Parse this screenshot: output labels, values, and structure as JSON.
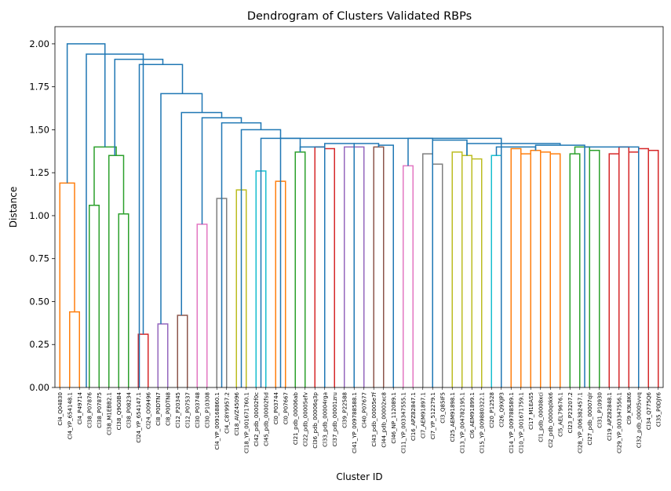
{
  "chart_data": {
    "type": "dendrogram",
    "title": "Dendrogram of Clusters Validated RBPs",
    "xlabel": "Cluster ID",
    "ylabel": "Distance",
    "ylim": [
      0,
      2.1
    ],
    "yticks": [
      0.0,
      0.25,
      0.5,
      0.75,
      1.0,
      1.25,
      1.5,
      1.75,
      2.0
    ],
    "ytick_labels": [
      "0.00",
      "0.25",
      "0.50",
      "0.75",
      "1.00",
      "1.25",
      "1.50",
      "1.75",
      "2.00"
    ],
    "grid": false,
    "above_threshold_color": "#1f77b4",
    "leaves": [
      "Cl4_Q04830",
      "Cl4_YP_654148.1",
      "Cl4_P49714",
      "Cl38_P07876",
      "Cl38_P07875",
      "Cl38_M1EBB2.1",
      "Cl38_Q9G0B4",
      "Cl38_P08234",
      "Cl24_YP_654147.1",
      "Cl24_O09496",
      "Cl8_P0DTN7",
      "Cl8_P0DTN8",
      "Cl12_P20345",
      "Cl12_P07537",
      "Cl30_P03748",
      "Cl30_P10308",
      "Cl4_YP_009168860.1",
      "Cl4_C8Y9957.2",
      "Cl18_AVZ45096",
      "Cl18_YP_001671760.1",
      "Cl42_pdb_00002f0c",
      "Cl45_pdb_00002fsd",
      "Cl0_P03744",
      "Cl0_P07667",
      "Cl21_pdb_00006ab",
      "Cl22_pdb_00005efv",
      "Cl36_pdb_00006q3p",
      "Cl33_pdb_00004rga",
      "Cl37_pdb_00001zru",
      "Cl39_P22588",
      "Cl41_YP_009788588.1",
      "Cl40_P07677",
      "Cl43_pdb_00005e7f",
      "Cl44_pdb_00002xc8",
      "Cl46_NP_112089.1",
      "Cl11_YP_003347555.1",
      "Cl16_APZ82847.1",
      "Cl7_AEM91897.1",
      "Cl7_YP_512279.1",
      "Cl3_Q85IF5",
      "Cl25_AEM91898.1",
      "Cl13_YP_004782195.1",
      "Cl6_AEM91899.1",
      "Cl15_YP_009880322.1",
      "Cl20_P12528",
      "Cl26_Q9XJP3",
      "Cl14_YP_009788589.1",
      "Cl10_YP_001671759.1",
      "Cl17_M1EAS5",
      "Cl1_pdb_00008xci",
      "Cl2_pdb_0000q0kk6",
      "Cl5_AEL79676.1",
      "Cl23_P23207.2",
      "Cl28_YP_006382457.1",
      "Cl27_pdb_00007qlr",
      "Cl31_P10930",
      "Cl19_APZ82848.1",
      "Cl29_YP_003347556.1",
      "Cl9_K9L8K6",
      "Cl32_pdb_00005vvq",
      "Cl34_Q775Q6",
      "Cl35_P0DJY6"
    ],
    "links": [
      {
        "leaves": [
          1,
          2
        ],
        "height": 0.44,
        "color": "#ff7f0e"
      },
      {
        "leaves": [
          0,
          1.5
        ],
        "height": 1.19,
        "color": "#ff7f0e"
      },
      {
        "leaves": [
          3,
          4
        ],
        "height": 1.06,
        "color": "#2ca02c"
      },
      {
        "leaves": [
          6,
          7
        ],
        "height": 1.01,
        "color": "#2ca02c"
      },
      {
        "leaves": [
          5,
          6.5
        ],
        "height": 1.35,
        "color": "#2ca02c"
      },
      {
        "leaves": [
          3.5,
          5.75
        ],
        "height": 1.4,
        "color": "#2ca02c"
      },
      {
        "leaves": [
          8,
          9
        ],
        "height": 0.31,
        "color": "#d62728"
      },
      {
        "leaves": [
          10,
          11
        ],
        "height": 0.37,
        "color": "#9467bd"
      },
      {
        "leaves": [
          12,
          13
        ],
        "height": 0.42,
        "color": "#8c564b"
      },
      {
        "leaves": [
          14,
          15
        ],
        "height": 0.95,
        "color": "#e377c2"
      },
      {
        "leaves": [
          16,
          17
        ],
        "height": 1.1,
        "color": "#7f7f7f"
      },
      {
        "leaves": [
          18,
          19
        ],
        "height": 1.15,
        "color": "#bcbd22"
      },
      {
        "leaves": [
          20,
          21
        ],
        "height": 1.26,
        "color": "#17becf"
      },
      {
        "leaves": [
          22,
          23
        ],
        "height": 1.2,
        "color": "#ff7f0e"
      },
      {
        "leaves": [
          24,
          25
        ],
        "height": 1.37,
        "color": "#2ca02c"
      },
      {
        "leaves": [
          26,
          27
        ],
        "height": 1.4,
        "color": "#d62728"
      },
      {
        "leaves": [
          27,
          28
        ],
        "height": 1.39,
        "color": "#d62728"
      },
      {
        "leaves": [
          29,
          30
        ],
        "height": 1.4,
        "color": "#9467bd"
      },
      {
        "leaves": [
          30,
          31
        ],
        "height": 1.4,
        "color": "#9467bd"
      },
      {
        "leaves": [
          32,
          33
        ],
        "height": 1.4,
        "color": "#8c564b"
      },
      {
        "leaves": [
          35,
          36
        ],
        "height": 1.29,
        "color": "#e377c2"
      },
      {
        "leaves": [
          37,
          38
        ],
        "height": 1.36,
        "color": "#7f7f7f"
      },
      {
        "leaves": [
          38,
          39
        ],
        "height": 1.3,
        "color": "#7f7f7f"
      },
      {
        "leaves": [
          40,
          41
        ],
        "height": 1.37,
        "color": "#bcbd22"
      },
      {
        "leaves": [
          41,
          42
        ],
        "height": 1.35,
        "color": "#bcbd22"
      },
      {
        "leaves": [
          42,
          43
        ],
        "height": 1.33,
        "color": "#bcbd22"
      },
      {
        "leaves": [
          44,
          45
        ],
        "height": 1.35,
        "color": "#17becf"
      },
      {
        "leaves": [
          46,
          47
        ],
        "height": 1.39,
        "color": "#ff7f0e"
      },
      {
        "leaves": [
          47,
          48
        ],
        "height": 1.36,
        "color": "#ff7f0e"
      },
      {
        "leaves": [
          48,
          49
        ],
        "height": 1.38,
        "color": "#ff7f0e"
      },
      {
        "leaves": [
          49,
          50
        ],
        "height": 1.37,
        "color": "#ff7f0e"
      },
      {
        "leaves": [
          50,
          51
        ],
        "height": 1.36,
        "color": "#ff7f0e"
      },
      {
        "leaves": [
          52,
          53
        ],
        "height": 1.36,
        "color": "#2ca02c"
      },
      {
        "leaves": [
          52.5,
          54
        ],
        "height": 1.4,
        "color": "#2ca02c"
      },
      {
        "leaves": [
          54,
          55
        ],
        "height": 1.38,
        "color": "#2ca02c"
      },
      {
        "leaves": [
          56,
          57
        ],
        "height": 1.36,
        "color": "#d62728"
      },
      {
        "leaves": [
          57,
          58
        ],
        "height": 1.4,
        "color": "#d62728"
      },
      {
        "leaves": [
          58,
          59
        ],
        "height": 1.37,
        "color": "#d62728"
      },
      {
        "leaves": [
          59,
          60
        ],
        "height": 1.39,
        "color": "#d62728"
      },
      {
        "leaves": [
          60,
          61
        ],
        "height": 1.38,
        "color": "#d62728"
      },
      {
        "leaves": [
          0.75,
          4.6
        ],
        "height": 2.0,
        "color": "#1f77b4"
      },
      {
        "leaves": [
          2.7,
          8.5
        ],
        "height": 1.94,
        "color": "#1f77b4"
      },
      {
        "leaves": [
          5.6,
          10.5
        ],
        "height": 1.91,
        "color": "#1f77b4"
      },
      {
        "leaves": [
          8.1,
          12.5
        ],
        "height": 1.88,
        "color": "#1f77b4"
      },
      {
        "leaves": [
          10.3,
          14.5
        ],
        "height": 1.71,
        "color": "#1f77b4"
      },
      {
        "leaves": [
          12.4,
          16.5
        ],
        "height": 1.6,
        "color": "#1f77b4"
      },
      {
        "leaves": [
          14.5,
          18.5
        ],
        "height": 1.57,
        "color": "#1f77b4"
      },
      {
        "leaves": [
          16.5,
          20.5
        ],
        "height": 1.54,
        "color": "#1f77b4"
      },
      {
        "leaves": [
          18.5,
          22.5
        ],
        "height": 1.5,
        "color": "#1f77b4"
      },
      {
        "leaves": [
          20.5,
          24.5
        ],
        "height": 1.45,
        "color": "#1f77b4"
      },
      {
        "leaves": [
          24.5,
          27
        ],
        "height": 1.4,
        "color": "#1f77b4"
      },
      {
        "leaves": [
          27,
          30
        ],
        "height": 1.42,
        "color": "#1f77b4"
      },
      {
        "leaves": [
          30,
          32.5
        ],
        "height": 1.42,
        "color": "#1f77b4"
      },
      {
        "leaves": [
          32.5,
          34
        ],
        "height": 1.41,
        "color": "#1f77b4"
      },
      {
        "leaves": [
          35.5,
          38
        ],
        "height": 1.45,
        "color": "#1f77b4"
      },
      {
        "leaves": [
          38,
          41.5
        ],
        "height": 1.44,
        "color": "#1f77b4"
      },
      {
        "leaves": [
          44.5,
          48.5
        ],
        "height": 1.4,
        "color": "#1f77b4"
      },
      {
        "leaves": [
          48.5,
          53.5
        ],
        "height": 1.41,
        "color": "#1f77b4"
      },
      {
        "leaves": [
          53.5,
          59
        ],
        "height": 1.4,
        "color": "#1f77b4"
      },
      {
        "leaves": [
          41.5,
          51
        ],
        "height": 1.42,
        "color": "#1f77b4"
      },
      {
        "leaves": [
          22.5,
          45
        ],
        "height": 1.45,
        "color": "#1f77b4"
      }
    ]
  }
}
